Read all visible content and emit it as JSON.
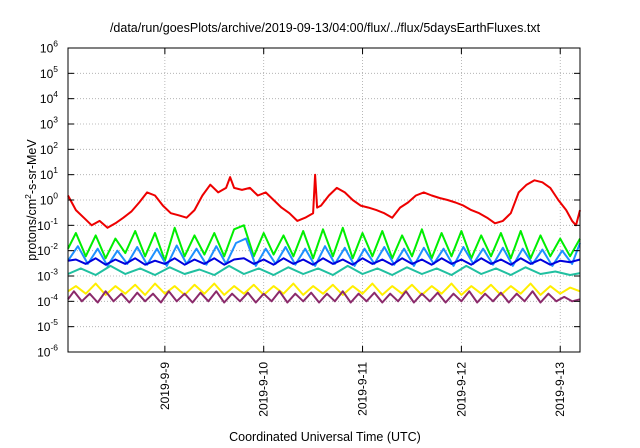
{
  "chart_data": {
    "type": "line",
    "title": "/data/run/goesPlots/archive/2019-09-13/04:00/flux/../flux/5daysEarthFluxes.txt",
    "xlabel": "Coordinated Universal Time (UTC)",
    "ylabel": {
      "prefix": "protons/cm",
      "superscript": "2",
      "suffix": "-s-sr-MeV"
    },
    "x_ticks": [
      {
        "label": "2019-9-9",
        "day": 9
      },
      {
        "label": "2019-9-10",
        "day": 10
      },
      {
        "label": "2019-9-11",
        "day": 11
      },
      {
        "label": "2019-9-12",
        "day": 12
      },
      {
        "label": "2019-9-13",
        "day": 13
      }
    ],
    "xlim": [
      8.02,
      13.2
    ],
    "y_scale": "log",
    "y_ticks": [
      {
        "base": "10",
        "exp": "-6"
      },
      {
        "base": "10",
        "exp": "-5"
      },
      {
        "base": "10",
        "exp": "-4"
      },
      {
        "base": "10",
        "exp": "-3"
      },
      {
        "base": "10",
        "exp": "-2"
      },
      {
        "base": "10",
        "exp": "-1"
      },
      {
        "base": "10",
        "exp": "0"
      },
      {
        "base": "10",
        "exp": "1"
      },
      {
        "base": "10",
        "exp": "2"
      },
      {
        "base": "10",
        "exp": "3"
      },
      {
        "base": "10",
        "exp": "4"
      },
      {
        "base": "10",
        "exp": "5"
      },
      {
        "base": "10",
        "exp": "6"
      }
    ],
    "ylim": [
      1e-06,
      1000000.0
    ],
    "grid": true,
    "legend": "none",
    "series": [
      {
        "color": "#ee0000",
        "x": [
          8.02,
          8.1,
          8.18,
          8.26,
          8.34,
          8.42,
          8.5,
          8.58,
          8.66,
          8.74,
          8.82,
          8.9,
          8.98,
          9.06,
          9.14,
          9.22,
          9.3,
          9.38,
          9.46,
          9.54,
          9.62,
          9.66,
          9.7,
          9.78,
          9.86,
          9.94,
          10.02,
          10.1,
          10.18,
          10.26,
          10.34,
          10.42,
          10.5,
          10.52,
          10.54,
          10.58,
          10.66,
          10.74,
          10.82,
          10.9,
          10.98,
          11.06,
          11.14,
          11.22,
          11.3,
          11.38,
          11.46,
          11.54,
          11.62,
          11.7,
          11.78,
          11.86,
          11.94,
          12.02,
          12.1,
          12.18,
          12.26,
          12.34,
          12.42,
          12.5,
          12.58,
          12.66,
          12.74,
          12.82,
          12.9,
          12.98,
          13.06,
          13.12,
          13.16,
          13.2
        ],
        "y": [
          1.5,
          0.4,
          0.2,
          0.1,
          0.15,
          0.08,
          0.12,
          0.2,
          0.35,
          0.8,
          2.0,
          1.5,
          0.6,
          0.3,
          0.25,
          0.2,
          0.4,
          1.5,
          4.0,
          2.0,
          3.0,
          8.0,
          3.0,
          2.5,
          3.0,
          1.5,
          2.0,
          1.0,
          0.5,
          0.3,
          0.15,
          0.2,
          0.3,
          10.0,
          0.5,
          0.6,
          1.5,
          3.0,
          2.0,
          1.0,
          0.6,
          0.5,
          0.4,
          0.3,
          0.2,
          0.5,
          0.8,
          1.5,
          2.0,
          1.5,
          1.2,
          1.0,
          0.8,
          0.6,
          0.4,
          0.3,
          0.2,
          0.12,
          0.15,
          0.3,
          2.0,
          4.0,
          6.0,
          5.0,
          3.0,
          1.0,
          0.4,
          0.15,
          0.1,
          0.4
        ]
      },
      {
        "color": "#00ee00",
        "x": [
          8.02,
          8.1,
          8.2,
          8.3,
          8.4,
          8.5,
          8.6,
          8.7,
          8.8,
          8.9,
          9.0,
          9.1,
          9.2,
          9.3,
          9.4,
          9.5,
          9.6,
          9.7,
          9.8,
          9.9,
          10.0,
          10.1,
          10.2,
          10.3,
          10.4,
          10.5,
          10.6,
          10.7,
          10.8,
          10.9,
          11.0,
          11.1,
          11.2,
          11.3,
          11.4,
          11.5,
          11.6,
          11.7,
          11.8,
          11.9,
          12.0,
          12.1,
          12.2,
          12.3,
          12.4,
          12.5,
          12.6,
          12.7,
          12.8,
          12.9,
          13.0,
          13.1,
          13.2
        ],
        "y": [
          0.012,
          0.05,
          0.006,
          0.04,
          0.005,
          0.03,
          0.008,
          0.06,
          0.006,
          0.05,
          0.004,
          0.08,
          0.006,
          0.04,
          0.007,
          0.05,
          0.006,
          0.07,
          0.1,
          0.006,
          0.05,
          0.007,
          0.04,
          0.006,
          0.06,
          0.005,
          0.07,
          0.006,
          0.08,
          0.005,
          0.05,
          0.006,
          0.06,
          0.005,
          0.04,
          0.006,
          0.07,
          0.005,
          0.05,
          0.006,
          0.06,
          0.005,
          0.04,
          0.006,
          0.05,
          0.005,
          0.06,
          0.005,
          0.04,
          0.006,
          0.03,
          0.006,
          0.03
        ]
      },
      {
        "color": "#1e90ff",
        "x": [
          8.02,
          8.12,
          8.22,
          8.32,
          8.42,
          8.52,
          8.62,
          8.72,
          8.82,
          8.92,
          9.02,
          9.12,
          9.22,
          9.32,
          9.42,
          9.52,
          9.62,
          9.72,
          9.82,
          9.92,
          10.02,
          10.12,
          10.22,
          10.32,
          10.42,
          10.52,
          10.62,
          10.72,
          10.82,
          10.92,
          11.02,
          11.12,
          11.22,
          11.32,
          11.42,
          11.52,
          11.62,
          11.72,
          11.82,
          11.92,
          12.02,
          12.12,
          12.22,
          12.32,
          12.42,
          12.52,
          12.62,
          12.72,
          12.82,
          12.92,
          13.02,
          13.12,
          13.2
        ],
        "y": [
          0.004,
          0.015,
          0.003,
          0.012,
          0.0025,
          0.01,
          0.003,
          0.014,
          0.0028,
          0.012,
          0.0025,
          0.016,
          0.003,
          0.012,
          0.0028,
          0.015,
          0.003,
          0.02,
          0.03,
          0.0025,
          0.012,
          0.003,
          0.014,
          0.0028,
          0.012,
          0.0025,
          0.015,
          0.003,
          0.013,
          0.0025,
          0.012,
          0.003,
          0.014,
          0.0028,
          0.012,
          0.0025,
          0.013,
          0.003,
          0.012,
          0.0025,
          0.014,
          0.003,
          0.012,
          0.0028,
          0.013,
          0.0025,
          0.012,
          0.003,
          0.011,
          0.0025,
          0.01,
          0.003,
          0.02
        ]
      },
      {
        "color": "#0000dd",
        "x": [
          8.02,
          8.1,
          8.2,
          8.3,
          8.4,
          8.5,
          8.6,
          8.7,
          8.8,
          8.9,
          9.0,
          9.1,
          9.2,
          9.3,
          9.4,
          9.5,
          9.6,
          9.7,
          9.8,
          9.9,
          10.0,
          10.1,
          10.2,
          10.3,
          10.4,
          10.5,
          10.6,
          10.7,
          10.8,
          10.9,
          11.0,
          11.1,
          11.2,
          11.3,
          11.4,
          11.5,
          11.6,
          11.7,
          11.8,
          11.9,
          12.0,
          12.1,
          12.2,
          12.3,
          12.4,
          12.5,
          12.6,
          12.7,
          12.8,
          12.9,
          13.0,
          13.1,
          13.2
        ],
        "y": [
          0.004,
          0.0045,
          0.003,
          0.005,
          0.0028,
          0.0045,
          0.003,
          0.005,
          0.0028,
          0.004,
          0.003,
          0.005,
          0.0028,
          0.0045,
          0.003,
          0.005,
          0.0028,
          0.0045,
          0.005,
          0.003,
          0.0045,
          0.0028,
          0.005,
          0.003,
          0.0045,
          0.0028,
          0.005,
          0.003,
          0.0045,
          0.0028,
          0.005,
          0.003,
          0.0045,
          0.0028,
          0.005,
          0.003,
          0.0045,
          0.0028,
          0.005,
          0.003,
          0.0045,
          0.0028,
          0.005,
          0.003,
          0.0045,
          0.0028,
          0.005,
          0.003,
          0.0045,
          0.0028,
          0.004,
          0.0035,
          0.0045
        ]
      },
      {
        "color": "#20c0a0",
        "x": [
          8.02,
          8.15,
          8.3,
          8.45,
          8.6,
          8.75,
          8.9,
          9.05,
          9.2,
          9.35,
          9.5,
          9.65,
          9.8,
          9.95,
          10.1,
          10.25,
          10.4,
          10.55,
          10.7,
          10.85,
          11.0,
          11.15,
          11.3,
          11.45,
          11.6,
          11.75,
          11.9,
          12.05,
          12.2,
          12.35,
          12.5,
          12.65,
          12.8,
          12.95,
          13.1,
          13.2
        ],
        "y": [
          0.0012,
          0.002,
          0.0011,
          0.0025,
          0.0012,
          0.002,
          0.0011,
          0.0022,
          0.0012,
          0.0018,
          0.0011,
          0.0025,
          0.0012,
          0.002,
          0.0011,
          0.0022,
          0.0012,
          0.002,
          0.0011,
          0.0025,
          0.0012,
          0.002,
          0.0011,
          0.0022,
          0.0012,
          0.002,
          0.0011,
          0.0025,
          0.0012,
          0.002,
          0.0011,
          0.0022,
          0.0012,
          0.0015,
          0.0011,
          0.0013
        ]
      },
      {
        "color": "#ffee00",
        "x": [
          8.02,
          8.1,
          8.2,
          8.3,
          8.4,
          8.5,
          8.6,
          8.7,
          8.8,
          8.9,
          9.0,
          9.1,
          9.2,
          9.3,
          9.4,
          9.5,
          9.6,
          9.7,
          9.8,
          9.9,
          10.0,
          10.1,
          10.2,
          10.3,
          10.4,
          10.5,
          10.6,
          10.7,
          10.8,
          10.9,
          11.0,
          11.1,
          11.2,
          11.3,
          11.4,
          11.5,
          11.6,
          11.7,
          11.8,
          11.9,
          12.0,
          12.1,
          12.2,
          12.3,
          12.4,
          12.5,
          12.6,
          12.7,
          12.8,
          12.9,
          13.0,
          13.1,
          13.2
        ],
        "y": [
          0.00025,
          0.0004,
          0.0002,
          0.0005,
          0.00018,
          0.0004,
          0.0002,
          0.00045,
          0.00018,
          0.0005,
          0.0002,
          0.0004,
          0.00018,
          0.00045,
          0.0002,
          0.0005,
          0.00018,
          0.0004,
          0.0002,
          0.00045,
          0.00018,
          0.0004,
          0.0002,
          0.0005,
          0.00018,
          0.0004,
          0.0002,
          0.00045,
          0.00018,
          0.0004,
          0.0002,
          0.0005,
          0.00018,
          0.0004,
          0.0002,
          0.00045,
          0.00018,
          0.0004,
          0.0002,
          0.0005,
          0.00018,
          0.0004,
          0.0002,
          0.00045,
          0.00018,
          0.0004,
          0.0002,
          0.0005,
          0.00018,
          0.0004,
          0.0002,
          0.00035,
          0.00025
        ]
      },
      {
        "color": "#8b2a6b",
        "x": [
          8.02,
          8.08,
          8.16,
          8.24,
          8.32,
          8.4,
          8.48,
          8.56,
          8.64,
          8.72,
          8.8,
          8.88,
          8.96,
          9.04,
          9.12,
          9.2,
          9.28,
          9.36,
          9.44,
          9.52,
          9.6,
          9.68,
          9.76,
          9.84,
          9.92,
          10.0,
          10.08,
          10.16,
          10.24,
          10.32,
          10.4,
          10.48,
          10.56,
          10.64,
          10.72,
          10.8,
          10.88,
          10.96,
          11.04,
          11.12,
          11.2,
          11.28,
          11.36,
          11.44,
          11.52,
          11.6,
          11.68,
          11.76,
          11.84,
          11.92,
          12.0,
          12.08,
          12.16,
          12.24,
          12.32,
          12.4,
          12.48,
          12.56,
          12.64,
          12.72,
          12.8,
          12.88,
          12.96,
          13.04,
          13.12,
          13.2
        ],
        "y": [
          0.00012,
          0.00025,
          0.0001,
          0.0002,
          9e-05,
          0.00025,
          0.0001,
          0.0002,
          9e-05,
          0.00022,
          0.0001,
          0.0002,
          9e-05,
          0.00025,
          0.0001,
          0.0002,
          9e-05,
          0.00022,
          0.0001,
          0.00025,
          9e-05,
          0.0002,
          0.0001,
          0.00022,
          9e-05,
          0.0002,
          0.0001,
          0.00025,
          9e-05,
          0.0002,
          0.0001,
          0.00022,
          9e-05,
          0.0002,
          0.0001,
          0.00025,
          9e-05,
          0.0002,
          0.0001,
          0.00022,
          9e-05,
          0.0002,
          0.0001,
          0.00025,
          9e-05,
          0.0002,
          0.0001,
          0.00022,
          9e-05,
          0.0002,
          0.0001,
          0.00025,
          9e-05,
          0.0002,
          0.0001,
          0.00022,
          9e-05,
          0.0002,
          0.0001,
          0.00025,
          9e-05,
          0.0002,
          0.0001,
          0.00015,
          0.0001,
          0.00012
        ]
      }
    ]
  }
}
